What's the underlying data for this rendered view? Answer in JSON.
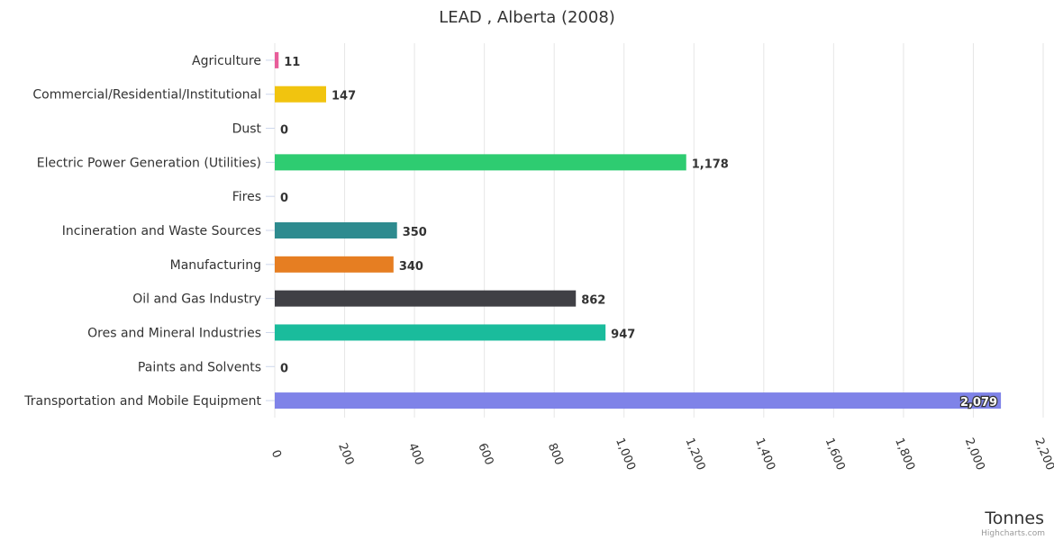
{
  "chart_data": {
    "type": "bar",
    "orientation": "horizontal",
    "title": "LEAD , Alberta (2008)",
    "categories": [
      "Agriculture",
      "Commercial/Residential/Institutional",
      "Dust",
      "Electric Power Generation (Utilities)",
      "Fires",
      "Incineration and Waste Sources",
      "Manufacturing",
      "Oil and Gas Industry",
      "Ores and Mineral Industries",
      "Paints and Solvents",
      "Transportation and Mobile Equipment"
    ],
    "values": [
      11,
      147,
      0,
      1178,
      0,
      350,
      340,
      862,
      947,
      0,
      2079
    ],
    "value_labels": [
      "11",
      "147",
      "0",
      "1,178",
      "0",
      "350",
      "340",
      "862",
      "947",
      "0",
      "2,079"
    ],
    "colors": [
      "#e85d9a",
      "#f1c40f",
      "#2ecc71",
      "#2ecc71",
      "#16a085",
      "#2e8b8f",
      "#e67e22",
      "#404045",
      "#1abc9c",
      "#8e44ad",
      "#7f83e8"
    ],
    "xlabel": "Tonnes",
    "ylabel": "",
    "xlim": [
      0,
      2200
    ],
    "ticks": [
      0,
      200,
      400,
      600,
      800,
      1000,
      1200,
      1400,
      1600,
      1800,
      2000,
      2200
    ],
    "tick_labels": [
      "0",
      "200",
      "400",
      "600",
      "800",
      "1,000",
      "1,200",
      "1,400",
      "1,600",
      "1,800",
      "2,000",
      "2,200"
    ],
    "grid": true,
    "credits": "Highcharts.com"
  }
}
